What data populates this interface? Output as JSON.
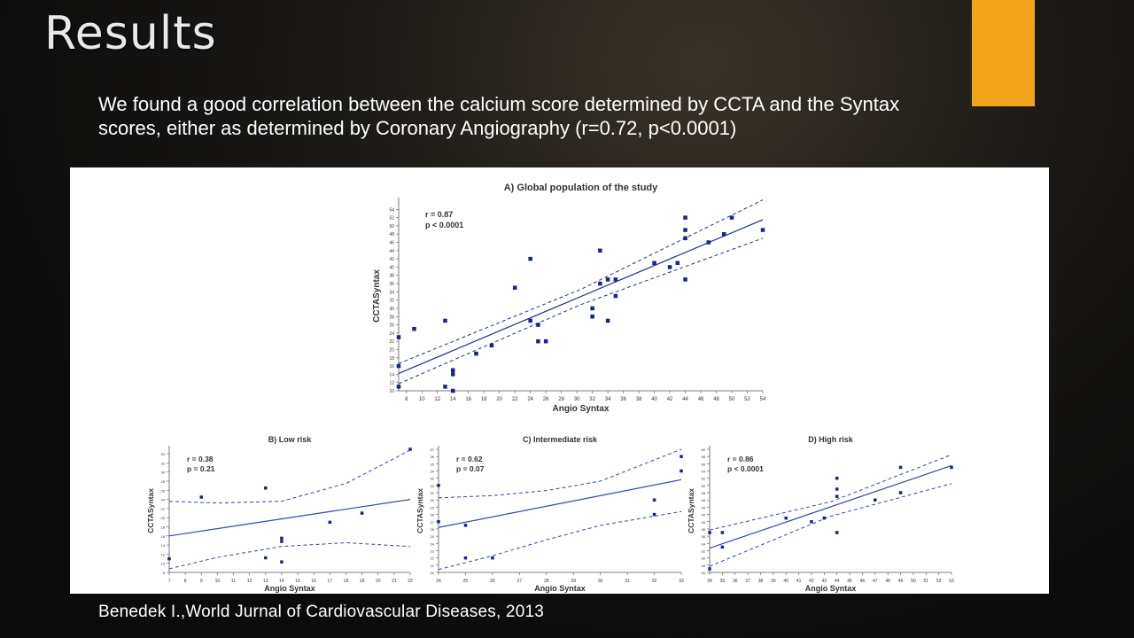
{
  "slide": {
    "title": "Results",
    "body": "We found a good correlation between the calcium score determined by CCTA and the Syntax scores, either as determined by Coronary Angiography (r=0.72, p<0.0001)",
    "citation": "Benedek I.,World Jurnal of Cardiovascular  Diseases, 2013",
    "accent_color": "#f0a51a"
  },
  "chart_data": [
    {
      "type": "scatter",
      "title": "A) Global population of the study",
      "xlabel": "Angio Syntax",
      "ylabel": "CCTASyntax",
      "xlim": [
        7,
        54
      ],
      "ylim": [
        10,
        56
      ],
      "xticks": [
        8,
        10,
        12,
        14,
        16,
        18,
        20,
        22,
        24,
        26,
        28,
        30,
        32,
        34,
        36,
        38,
        40,
        42,
        44,
        46,
        48,
        50,
        52,
        54
      ],
      "yticks": [
        10,
        12,
        14,
        16,
        18,
        20,
        22,
        24,
        26,
        28,
        30,
        32,
        34,
        36,
        38,
        40,
        42,
        44,
        46,
        48,
        50,
        52,
        54
      ],
      "annotation": [
        "r = 0.87",
        "p < 0.0001"
      ],
      "points": [
        [
          7,
          11
        ],
        [
          7,
          16
        ],
        [
          7,
          23
        ],
        [
          9,
          25
        ],
        [
          13,
          11
        ],
        [
          13,
          27
        ],
        [
          14,
          10
        ],
        [
          14,
          14
        ],
        [
          14,
          15
        ],
        [
          17,
          19
        ],
        [
          19,
          21
        ],
        [
          22,
          35
        ],
        [
          24,
          27
        ],
        [
          24,
          42
        ],
        [
          25,
          22
        ],
        [
          25,
          26
        ],
        [
          26,
          22
        ],
        [
          32,
          28
        ],
        [
          32,
          30
        ],
        [
          33,
          36
        ],
        [
          33,
          44
        ],
        [
          34,
          37
        ],
        [
          34,
          27
        ],
        [
          35,
          33
        ],
        [
          35,
          37
        ],
        [
          40,
          41
        ],
        [
          42,
          40
        ],
        [
          43,
          41
        ],
        [
          44,
          47
        ],
        [
          44,
          49
        ],
        [
          44,
          52
        ],
        [
          44,
          37
        ],
        [
          47,
          46
        ],
        [
          49,
          48
        ],
        [
          50,
          52
        ],
        [
          54,
          49
        ]
      ],
      "fit": {
        "x": [
          7,
          54
        ],
        "y": [
          14.2,
          51.5
        ]
      },
      "ci_upper": {
        "x": [
          7,
          30.5,
          54
        ],
        "y": [
          16.6,
          34.6,
          56.3
        ]
      },
      "ci_lower": {
        "x": [
          7,
          30.5,
          54
        ],
        "y": [
          11.7,
          30.9,
          47.0
        ]
      },
      "color": "#1c2fa0"
    },
    {
      "type": "scatter",
      "title": "B) Low risk",
      "xlabel": "Angio Syntax",
      "ylabel": "CCTASyntax",
      "xlim": [
        7,
        22
      ],
      "ylim": [
        8,
        35
      ],
      "xticks": [
        7,
        8,
        9,
        10,
        11,
        12,
        13,
        14,
        15,
        16,
        17,
        18,
        19,
        20,
        21,
        22
      ],
      "yticks": [
        8,
        10,
        12,
        14,
        16,
        18,
        20,
        22,
        24,
        26,
        28,
        30,
        32,
        34
      ],
      "annotation": [
        "r = 0.38",
        "p = 0.21"
      ],
      "points": [
        [
          7,
          11
        ],
        [
          9,
          24.5
        ],
        [
          13,
          11.2
        ],
        [
          13,
          26.5
        ],
        [
          14,
          10.3
        ],
        [
          14,
          14.8
        ],
        [
          14,
          15.5
        ],
        [
          17,
          19
        ],
        [
          19,
          21
        ],
        [
          22,
          35
        ]
      ],
      "fit": {
        "x": [
          7,
          22
        ],
        "y": [
          16,
          24
        ]
      },
      "ci_upper": {
        "x": [
          7,
          10,
          14,
          18,
          22
        ],
        "y": [
          23.6,
          23.2,
          23.6,
          27.5,
          34.8
        ]
      },
      "ci_lower": {
        "x": [
          7,
          10,
          14,
          18,
          22
        ],
        "y": [
          8.8,
          11.3,
          13.7,
          14.5,
          13.7
        ]
      },
      "color": "#3347b5"
    },
    {
      "type": "scatter",
      "title": "C) Intermediate risk",
      "xlabel": "Angio Syntax",
      "ylabel": "CCTASyntax",
      "xlim": [
        24,
        33
      ],
      "ylim": [
        20,
        37
      ],
      "xticks": [
        24,
        25,
        26,
        27,
        28,
        29,
        30,
        31,
        32,
        33
      ],
      "yticks": [
        20,
        21,
        22,
        23,
        24,
        25,
        26,
        27,
        28,
        29,
        30,
        31,
        32,
        33,
        34,
        35,
        36,
        37
      ],
      "annotation": [
        "r = 0.62",
        "p = 0.07"
      ],
      "points": [
        [
          24,
          27
        ],
        [
          24,
          32
        ],
        [
          25,
          26.5
        ],
        [
          25,
          22
        ],
        [
          26,
          22
        ],
        [
          32,
          28
        ],
        [
          32,
          30
        ],
        [
          33,
          34
        ],
        [
          33,
          36
        ]
      ],
      "fit": {
        "x": [
          24,
          33
        ],
        "y": [
          26.2,
          32.8
        ]
      },
      "ci_upper": {
        "x": [
          24,
          26,
          28,
          30,
          33
        ],
        "y": [
          30.3,
          30.6,
          31.3,
          32.6,
          37
        ]
      },
      "ci_lower": {
        "x": [
          24,
          26,
          28,
          30,
          33
        ],
        "y": [
          20.4,
          22.3,
          24.5,
          26.5,
          28.4
        ]
      },
      "color": "#3347b5"
    },
    {
      "type": "scatter",
      "title": "D) High risk",
      "xlabel": "Angio Syntax",
      "ylabel": "CCTASyntax",
      "xlim": [
        34,
        53
      ],
      "ylim": [
        26,
        60
      ],
      "xticks": [
        34,
        35,
        36,
        37,
        38,
        39,
        40,
        41,
        42,
        43,
        44,
        45,
        46,
        47,
        48,
        49,
        50,
        51,
        52,
        53
      ],
      "yticks": [
        26,
        28,
        30,
        32,
        34,
        36,
        38,
        40,
        42,
        44,
        46,
        48,
        50,
        52,
        54,
        56,
        58,
        60
      ],
      "annotation": [
        "r = 0.86",
        "p < 0.0001"
      ],
      "points": [
        [
          34,
          27
        ],
        [
          34,
          37
        ],
        [
          35,
          33
        ],
        [
          35,
          37
        ],
        [
          40,
          41
        ],
        [
          42,
          40
        ],
        [
          43,
          41
        ],
        [
          44,
          47
        ],
        [
          44,
          49
        ],
        [
          44,
          52
        ],
        [
          44,
          37
        ],
        [
          47,
          46
        ],
        [
          49,
          48
        ],
        [
          49,
          55
        ],
        [
          53,
          55
        ]
      ],
      "fit": {
        "x": [
          34,
          53
        ],
        "y": [
          32.7,
          55.5
        ]
      },
      "ci_upper": {
        "x": [
          34,
          43.5,
          53
        ],
        "y": [
          37.7,
          45.5,
          58.5
        ]
      },
      "ci_lower": {
        "x": [
          34,
          43.5,
          53
        ],
        "y": [
          27.7,
          41.5,
          50.5
        ]
      },
      "color": "#3347b5"
    }
  ]
}
